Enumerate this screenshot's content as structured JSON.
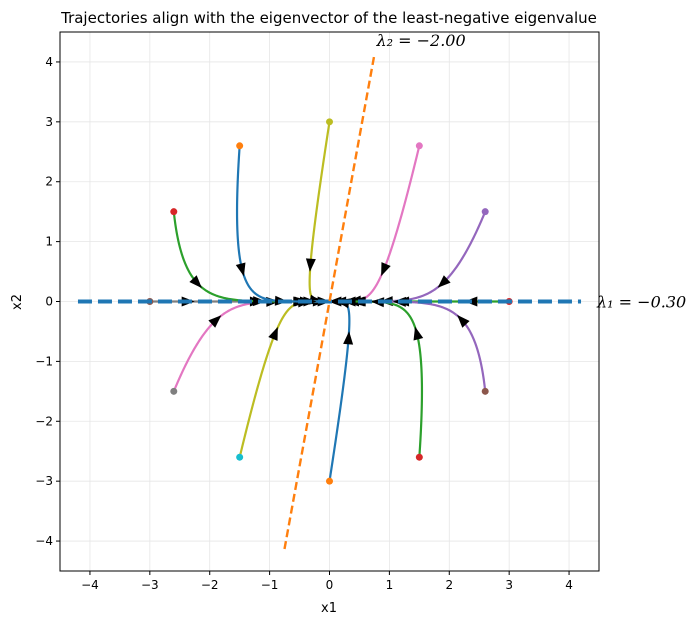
{
  "chart_data": {
    "type": "line",
    "title": "Trajectories align with the eigenvector of the least-negative eigenvalue",
    "xlabel": "x1",
    "ylabel": "x2",
    "xlim": [
      -4.5,
      4.5
    ],
    "ylim": [
      -4.5,
      4.5
    ],
    "xticks": [
      -4,
      -3,
      -2,
      -1,
      0,
      1,
      2,
      3,
      4
    ],
    "yticks": [
      -4,
      -3,
      -2,
      -1,
      0,
      1,
      2,
      3,
      4
    ],
    "xtick_labels": [
      "−4",
      "−3",
      "−2",
      "−1",
      "0",
      "1",
      "2",
      "3",
      "4"
    ],
    "ytick_labels": [
      "−4",
      "−3",
      "−2",
      "−1",
      "0",
      "1",
      "2",
      "3",
      "4"
    ],
    "grid": true,
    "eigenvalues": [
      {
        "label": "λ₁ = −0.30",
        "value": -0.3,
        "direction": [
          1,
          0
        ],
        "color": "#1f77b4",
        "style": "dashed-thick",
        "extent": [
          -4.2,
          4.2
        ]
      },
      {
        "label": "λ₂ = −2.00",
        "value": -2.0,
        "direction": [
          0.1789,
          0.9839
        ],
        "color": "#ff7f0e",
        "style": "dashed",
        "extent": [
          -4.2,
          4.2
        ]
      }
    ],
    "trajectories": [
      {
        "start": [
          0,
          3
        ],
        "color": "#bcbd22"
      },
      {
        "start": [
          1.5,
          2.6
        ],
        "color": "#e377c2"
      },
      {
        "start": [
          2.6,
          1.5
        ],
        "color": "#9467bd"
      },
      {
        "start": [
          3,
          0
        ],
        "color": "#2ca02c",
        "marker_color": "#d62728"
      },
      {
        "start": [
          2.6,
          -1.5
        ],
        "color": "#9467bd",
        "marker_color": "#8c564b"
      },
      {
        "start": [
          1.5,
          -2.6
        ],
        "color": "#2ca02c",
        "marker_color": "#d62728"
      },
      {
        "start": [
          0,
          -3
        ],
        "color": "#1f77b4",
        "marker_color": "#ff7f0e"
      },
      {
        "start": [
          -1.5,
          -2.6
        ],
        "color": "#bcbd22",
        "marker_color": "#17becf"
      },
      {
        "start": [
          -2.6,
          -1.5
        ],
        "color": "#e377c2",
        "marker_color": "#7f7f7f"
      },
      {
        "start": [
          -3,
          0
        ],
        "color": "#7f7f7f",
        "marker_color": "#8c564b"
      },
      {
        "start": [
          -2.6,
          1.5
        ],
        "color": "#2ca02c",
        "marker_color": "#d62728"
      },
      {
        "start": [
          -1.5,
          2.6
        ],
        "color": "#1f77b4",
        "marker_color": "#ff7f0e"
      }
    ]
  }
}
